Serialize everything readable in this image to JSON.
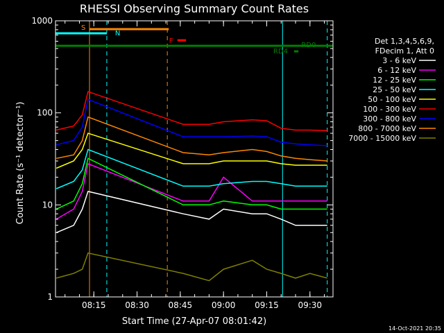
{
  "chart_data": {
    "type": "line",
    "title": "RHESSI Observing Summary Count Rates",
    "xlabel": "Start Time (27-Apr-07 08:01:42)",
    "ylabel": "Count Rate (s⁻¹ detector⁻¹)",
    "y_scale": "log",
    "ylim": [
      1,
      1000
    ],
    "xlim": [
      "08:01:42",
      "09:38:00"
    ],
    "x_ticks": [
      "08:15",
      "08:30",
      "08:45",
      "09:00",
      "09:15",
      "09:30"
    ],
    "y_ticks": [
      "1",
      "10",
      "100",
      "1000"
    ],
    "grid": false,
    "legend_placement": "right",
    "legend_header": [
      "Det 1,3,4,5,6,9,",
      "FDecim 1, Att 0"
    ],
    "series": [
      {
        "name": "3 - 6 keV",
        "color": "#ffffff",
        "x": [
          "08:02",
          "08:08",
          "08:11",
          "08:13",
          "08:40",
          "08:46",
          "08:55",
          "09:00",
          "09:10",
          "09:15",
          "09:20",
          "09:25",
          "09:30",
          "09:36"
        ],
        "values": [
          5,
          6,
          9,
          14,
          10,
          8,
          7,
          9,
          8,
          8,
          7,
          6,
          6,
          6
        ]
      },
      {
        "name": "6 - 12 keV",
        "color": "#ff00ff",
        "x": [
          "08:02",
          "08:08",
          "08:11",
          "08:13",
          "08:40",
          "08:46",
          "08:55",
          "09:00",
          "09:10",
          "09:15",
          "09:20",
          "09:25",
          "09:30",
          "09:36"
        ],
        "values": [
          7,
          9,
          14,
          28,
          13,
          11,
          11,
          20,
          11,
          11,
          11,
          11,
          11,
          11
        ]
      },
      {
        "name": "12 - 25 keV",
        "color": "#00ff00",
        "x": [
          "08:02",
          "08:08",
          "08:11",
          "08:13",
          "08:40",
          "08:46",
          "08:55",
          "09:00",
          "09:10",
          "09:15",
          "09:20",
          "09:25",
          "09:30",
          "09:36"
        ],
        "values": [
          9,
          11,
          17,
          32,
          11,
          10,
          10,
          11,
          10,
          10,
          9,
          9,
          9,
          9
        ]
      },
      {
        "name": "25 - 50 keV",
        "color": "#00ffff",
        "x": [
          "08:02",
          "08:08",
          "08:11",
          "08:13",
          "08:40",
          "08:46",
          "08:55",
          "09:00",
          "09:10",
          "09:15",
          "09:20",
          "09:25",
          "09:30",
          "09:36"
        ],
        "values": [
          15,
          18,
          24,
          40,
          17,
          16,
          16,
          17,
          18,
          18,
          17,
          16,
          16,
          16
        ]
      },
      {
        "name": "50 - 100 keV",
        "color": "#ffff00",
        "x": [
          "08:02",
          "08:08",
          "08:11",
          "08:13",
          "08:40",
          "08:46",
          "08:55",
          "09:00",
          "09:10",
          "09:15",
          "09:20",
          "09:25",
          "09:30",
          "09:36"
        ],
        "values": [
          25,
          30,
          40,
          60,
          30,
          28,
          28,
          30,
          30,
          30,
          28,
          27,
          27,
          27
        ]
      },
      {
        "name": "100 - 300 keV",
        "color": "#ff0000",
        "x": [
          "08:02",
          "08:08",
          "08:11",
          "08:13",
          "08:40",
          "08:46",
          "08:55",
          "09:00",
          "09:10",
          "09:15",
          "09:20",
          "09:25",
          "09:30",
          "09:36"
        ],
        "values": [
          65,
          72,
          95,
          170,
          95,
          75,
          75,
          80,
          84,
          82,
          68,
          65,
          65,
          64
        ]
      },
      {
        "name": "300 - 800 keV",
        "color": "#0000ff",
        "x": [
          "08:02",
          "08:08",
          "08:11",
          "08:13",
          "08:40",
          "08:46",
          "08:55",
          "09:00",
          "09:10",
          "09:15",
          "09:20",
          "09:25",
          "09:30",
          "09:36"
        ],
        "values": [
          45,
          50,
          70,
          140,
          70,
          55,
          55,
          55,
          56,
          55,
          48,
          46,
          45,
          44
        ]
      },
      {
        "name": "800 - 7000 keV",
        "color": "#ff8800",
        "x": [
          "08:02",
          "08:08",
          "08:11",
          "08:13",
          "08:40",
          "08:46",
          "08:55",
          "09:00",
          "09:10",
          "09:15",
          "09:20",
          "09:25",
          "09:30",
          "09:36"
        ],
        "values": [
          32,
          35,
          50,
          90,
          44,
          37,
          35,
          37,
          40,
          38,
          34,
          32,
          31,
          30
        ]
      },
      {
        "name": "7000 - 15000 keV",
        "color": "#808000",
        "x": [
          "08:02",
          "08:08",
          "08:11",
          "08:13",
          "08:40",
          "08:46",
          "08:55",
          "09:00",
          "09:10",
          "09:15",
          "09:20",
          "09:25",
          "09:30",
          "09:36"
        ],
        "values": [
          1.6,
          1.8,
          2,
          3,
          1.5,
          1.8,
          1.5,
          2,
          2.5,
          2,
          1.8,
          1.6,
          1.8,
          1.6
        ]
      }
    ],
    "annotations": [
      {
        "label": "S",
        "color": "#ff8800",
        "x_start": "08:13:30",
        "x_end": "08:41:00"
      },
      {
        "label": "N",
        "color": "#00ffff",
        "x_start": "08:01:42",
        "x_end": "08:19:30"
      },
      {
        "label": "F",
        "color": "#ff0000",
        "x_start": "08:44:00",
        "x_end": "08:47:00"
      },
      {
        "label": "RD0",
        "color": "#008000",
        "x_start": "08:01:42",
        "x_end": "09:37:50"
      },
      {
        "label": "RD4",
        "color": "#008000",
        "x_start": "09:24:30",
        "x_end": "09:26:00"
      }
    ],
    "vertical_lines": [
      {
        "x": "08:13:30",
        "color": "#ff8800",
        "style": "solid"
      },
      {
        "x": "08:19:30",
        "color": "#00ffff",
        "style": "dashed"
      },
      {
        "x": "08:40:30",
        "color": "#ff8800",
        "style": "dashed"
      },
      {
        "x": "09:20:30",
        "color": "#00ffff",
        "style": "solid"
      },
      {
        "x": "09:36:00",
        "color": "#00ffff",
        "style": "dashed"
      }
    ],
    "data_gap": [
      "08:13:30",
      "08:40:30"
    ]
  },
  "footer": {
    "date": "14-Oct-2021 20:35"
  }
}
